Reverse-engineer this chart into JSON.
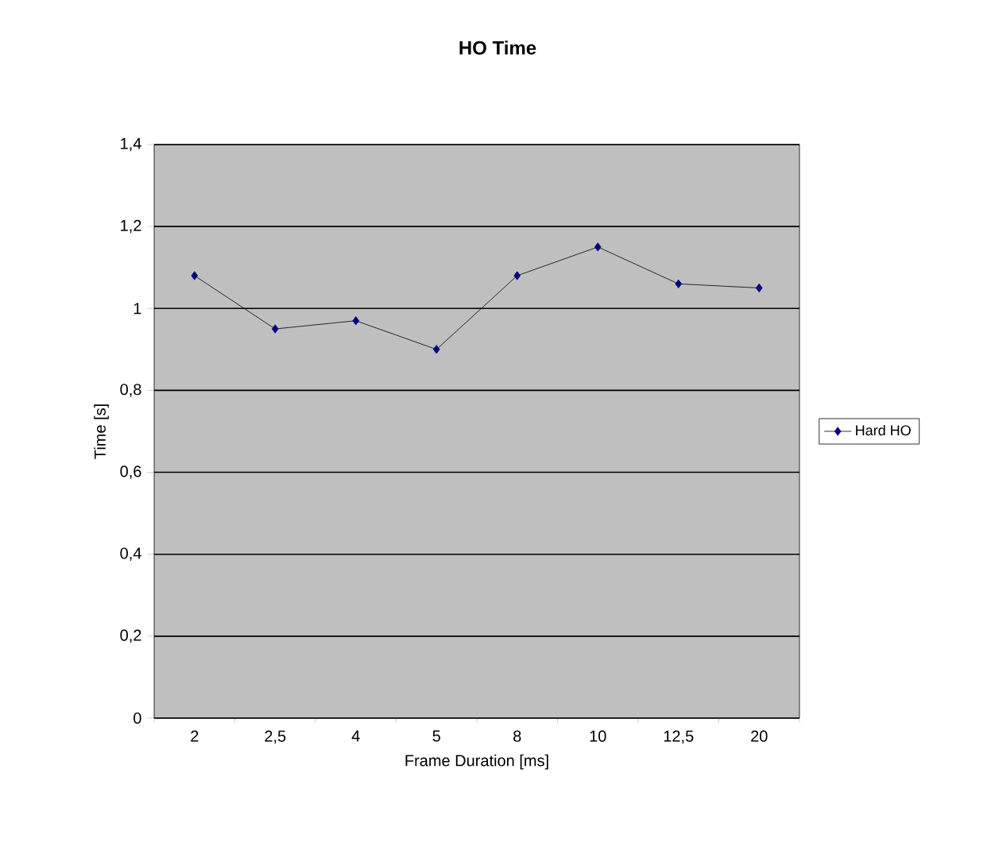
{
  "chart_data": {
    "type": "line",
    "title": "HO Time",
    "xlabel": "Frame Duration [ms]",
    "ylabel": "Time [s]",
    "categories": [
      "2",
      "2,5",
      "4",
      "5",
      "8",
      "10",
      "12,5",
      "20"
    ],
    "series": [
      {
        "name": "Hard HO",
        "color": "#000080",
        "values": [
          1.08,
          0.95,
          0.97,
          0.9,
          1.08,
          1.15,
          1.06,
          1.05
        ]
      }
    ],
    "ylim": [
      0,
      1.4
    ],
    "yticks": [
      0,
      {
        "value": 0.2,
        "label": "0,2"
      },
      {
        "value": 0.4,
        "label": "0,4"
      },
      {
        "value": 0.6,
        "label": "0,6"
      },
      {
        "value": 0.8,
        "label": "0,8"
      },
      1,
      {
        "value": 1.2,
        "label": "1,2"
      },
      {
        "value": 1.4,
        "label": "1,4"
      }
    ],
    "grid": "y",
    "legend": "right",
    "marker": "diamond",
    "line_style": "solid"
  }
}
